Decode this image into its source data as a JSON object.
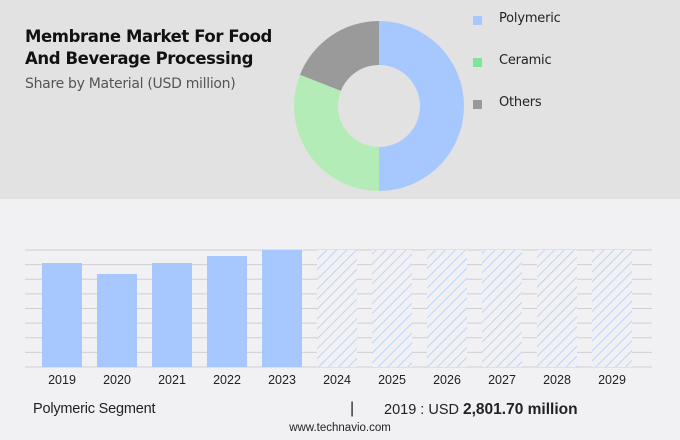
{
  "header": {
    "title_line1": "Membrane Market For Food",
    "title_line2": "And Beverage Processing",
    "subtitle": "Share by Material (USD million)"
  },
  "legend": [
    {
      "label": "Polymeric",
      "color": "#a7c8ff"
    },
    {
      "label": "Ceramic",
      "color": "#7fe39a"
    },
    {
      "label": "Others",
      "color": "#999999"
    }
  ],
  "footer": {
    "segment_label": "Polymeric Segment",
    "separator": "|",
    "value_prefix": "2019 : USD ",
    "value_bold": "2,801.70 million",
    "url": "www.technavio.com"
  },
  "chart_data": [
    {
      "type": "pie",
      "subtype": "donut",
      "title": "Membrane Market For Food And Beverage Processing - Share by Material (USD million)",
      "categories": [
        "Polymeric",
        "Ceramic",
        "Others"
      ],
      "values": [
        50,
        31,
        19
      ],
      "colors": [
        "#a7c8ff",
        "#b4ecb8",
        "#9a9a9a"
      ],
      "legend_position": "right"
    },
    {
      "type": "bar",
      "title": "Polymeric Segment",
      "categories": [
        "2019",
        "2020",
        "2021",
        "2022",
        "2023",
        "2024",
        "2025",
        "2026",
        "2027",
        "2028",
        "2029"
      ],
      "values": [
        2801.7,
        2505,
        2802,
        2990,
        3152,
        null,
        null,
        null,
        null,
        null,
        null
      ],
      "forecast_years": [
        "2024",
        "2025",
        "2026",
        "2027",
        "2028",
        "2029"
      ],
      "forecast_style": "hatched, full height",
      "xlabel": "",
      "ylabel": "",
      "grid": true,
      "ylim": [
        0,
        3152
      ],
      "bar_color": "#a7c8ff",
      "annotation": "2019 : USD 2,801.70 million"
    }
  ]
}
